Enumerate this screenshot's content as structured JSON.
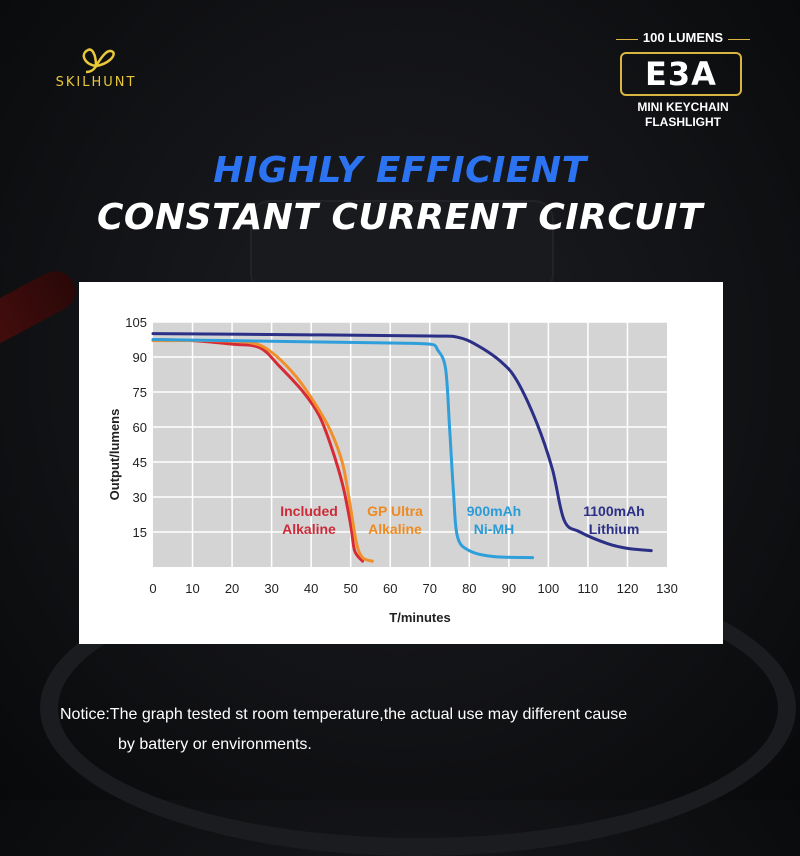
{
  "brand": {
    "name": "SKILHUNT",
    "logo_color": "#e9c93a"
  },
  "badge": {
    "lumens": "100 LUMENS",
    "model": "E3A",
    "line1": "MINI KEYCHAIN",
    "line2": "FLASHLIGHT",
    "accent": "#d8b540"
  },
  "headline": {
    "line1": "HIGHLY EFFICIENT",
    "line2": "CONSTANT CURRENT CIRCUIT",
    "line1_color": "#2b73f0"
  },
  "chart_data": {
    "type": "line",
    "title": "",
    "xlabel": "T/minutes",
    "ylabel": "Output/lumens",
    "xlim": [
      0,
      130
    ],
    "ylim": [
      0,
      105
    ],
    "xticks": [
      0,
      10,
      20,
      30,
      40,
      50,
      60,
      70,
      80,
      90,
      100,
      110,
      120,
      130
    ],
    "yticks": [
      15,
      30,
      45,
      60,
      75,
      90,
      105
    ],
    "grid": true,
    "background_color": "#d4d4d4",
    "series": [
      {
        "name": "Included Alkaline",
        "label_lines": [
          "Included",
          "Alkaline"
        ],
        "color": "#d62b36",
        "label_color": "#cc2a38",
        "points": [
          [
            0,
            97.5
          ],
          [
            10,
            97
          ],
          [
            20,
            95.5
          ],
          [
            27,
            94
          ],
          [
            32,
            86
          ],
          [
            38,
            75
          ],
          [
            42,
            65
          ],
          [
            45,
            52
          ],
          [
            48,
            35
          ],
          [
            50,
            18
          ],
          [
            51,
            7
          ],
          [
            53,
            2.5
          ]
        ]
      },
      {
        "name": "GP Ultra Alkaline",
        "label_lines": [
          "GP Ultra",
          "Alkaline"
        ],
        "color": "#f0902a",
        "label_color": "#ee8a20",
        "points": [
          [
            0,
            97
          ],
          [
            15,
            97
          ],
          [
            25,
            96
          ],
          [
            30,
            92
          ],
          [
            36,
            82
          ],
          [
            41,
            70
          ],
          [
            45,
            58
          ],
          [
            48,
            44
          ],
          [
            50,
            25
          ],
          [
            51.5,
            10
          ],
          [
            53,
            4
          ],
          [
            55.5,
            2.5
          ]
        ]
      },
      {
        "name": "900mAh Ni-MH",
        "label_lines": [
          "900mAh",
          "Ni-MH"
        ],
        "color": "#2f9fdb",
        "label_color": "#2b9bd6",
        "points": [
          [
            0,
            97.5
          ],
          [
            20,
            97
          ],
          [
            40,
            96.5
          ],
          [
            60,
            96
          ],
          [
            70,
            95.5
          ],
          [
            72,
            93
          ],
          [
            74,
            85
          ],
          [
            75,
            60
          ],
          [
            76,
            32
          ],
          [
            77,
            13
          ],
          [
            80,
            7
          ],
          [
            86,
            4.5
          ],
          [
            96,
            4
          ]
        ]
      },
      {
        "name": "1100mAh Lithium",
        "label_lines": [
          "1100mAh",
          "Lithium"
        ],
        "color": "#2b2f86",
        "label_color": "#2b2f86",
        "points": [
          [
            0,
            100
          ],
          [
            40,
            99.5
          ],
          [
            70,
            99
          ],
          [
            77,
            98.5
          ],
          [
            82,
            95
          ],
          [
            88,
            88
          ],
          [
            92,
            80
          ],
          [
            97,
            62
          ],
          [
            101,
            42
          ],
          [
            104,
            20
          ],
          [
            108,
            15
          ],
          [
            115,
            10
          ],
          [
            120,
            8
          ],
          [
            126,
            7
          ]
        ]
      }
    ]
  },
  "notice": {
    "line1": "Notice:The graph tested st room temperature,the actual use may different cause",
    "line2": "by battery or environments."
  }
}
